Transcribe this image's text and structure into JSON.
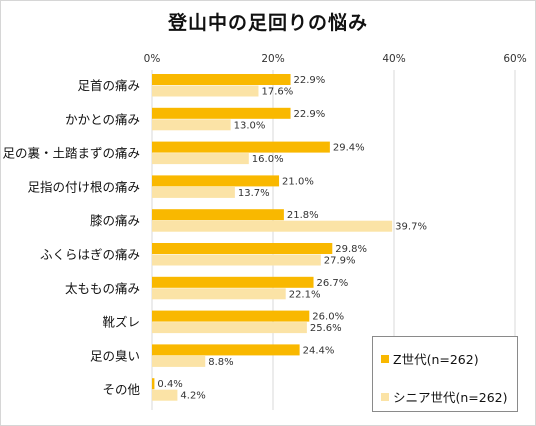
{
  "chart_data": {
    "type": "bar",
    "orientation": "horizontal",
    "title": "登山中の足回りの悩み",
    "categories": [
      "足首の痛み",
      "かかとの痛み",
      "足の裏・土踏まずの痛み",
      "足指の付け根の痛み",
      "膝の痛み",
      "ふくらはぎの痛み",
      "太ももの痛み",
      "靴ズレ",
      "足の臭い",
      "その他"
    ],
    "series": [
      {
        "name": "Z世代(n=262)",
        "values": [
          22.9,
          22.9,
          29.4,
          21.0,
          21.8,
          29.8,
          26.7,
          26.0,
          24.4,
          0.4
        ],
        "color": "#F9B800"
      },
      {
        "name": "シニア世代(n=262)",
        "values": [
          17.6,
          13.0,
          16.0,
          13.7,
          39.7,
          27.9,
          22.1,
          25.6,
          8.8,
          4.2
        ],
        "color": "#FBE3A6"
      }
    ],
    "xlim": [
      0,
      60
    ],
    "xticks": [
      0,
      20,
      40,
      60
    ],
    "tick_suffix": "%",
    "value_suffix": "%",
    "grid": true,
    "legend_position": "bottom-right"
  }
}
